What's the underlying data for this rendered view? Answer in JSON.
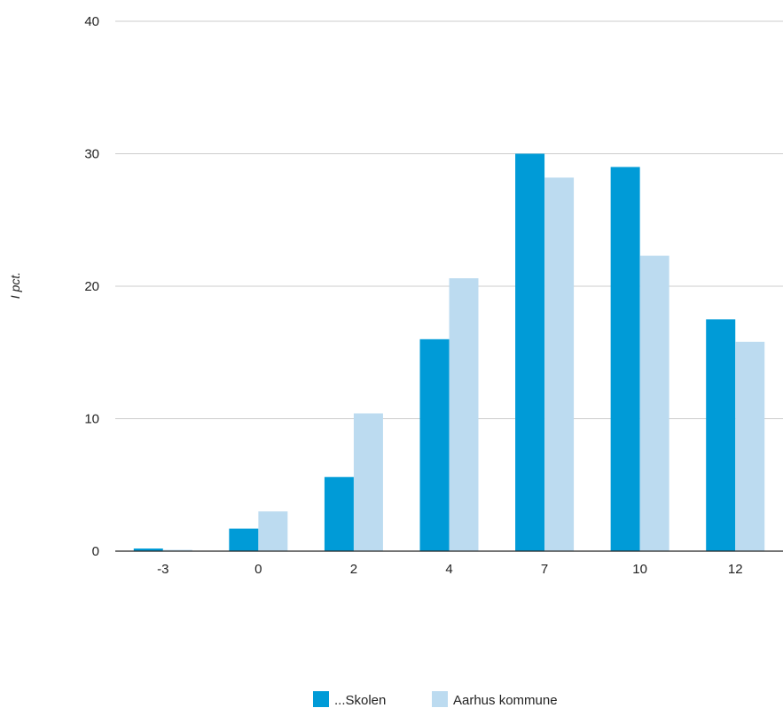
{
  "chart_data": {
    "type": "bar",
    "title": "",
    "xlabel": "",
    "ylabel": "I pct.",
    "categories": [
      "-3",
      "0",
      "2",
      "4",
      "7",
      "10",
      "12"
    ],
    "series": [
      {
        "name": "...Skolen",
        "color": "#009BD7",
        "values": [
          0.2,
          1.7,
          5.6,
          16.0,
          30.0,
          29.0,
          17.5
        ]
      },
      {
        "name": "Aarhus kommune",
        "color": "#BCDBF0",
        "values": [
          0.1,
          3.0,
          10.4,
          20.6,
          28.2,
          22.3,
          15.8
        ]
      }
    ],
    "ylim": [
      0,
      40
    ],
    "yticks": [
      0,
      10,
      20,
      30,
      40
    ],
    "grid": true,
    "legend_position": "bottom"
  }
}
